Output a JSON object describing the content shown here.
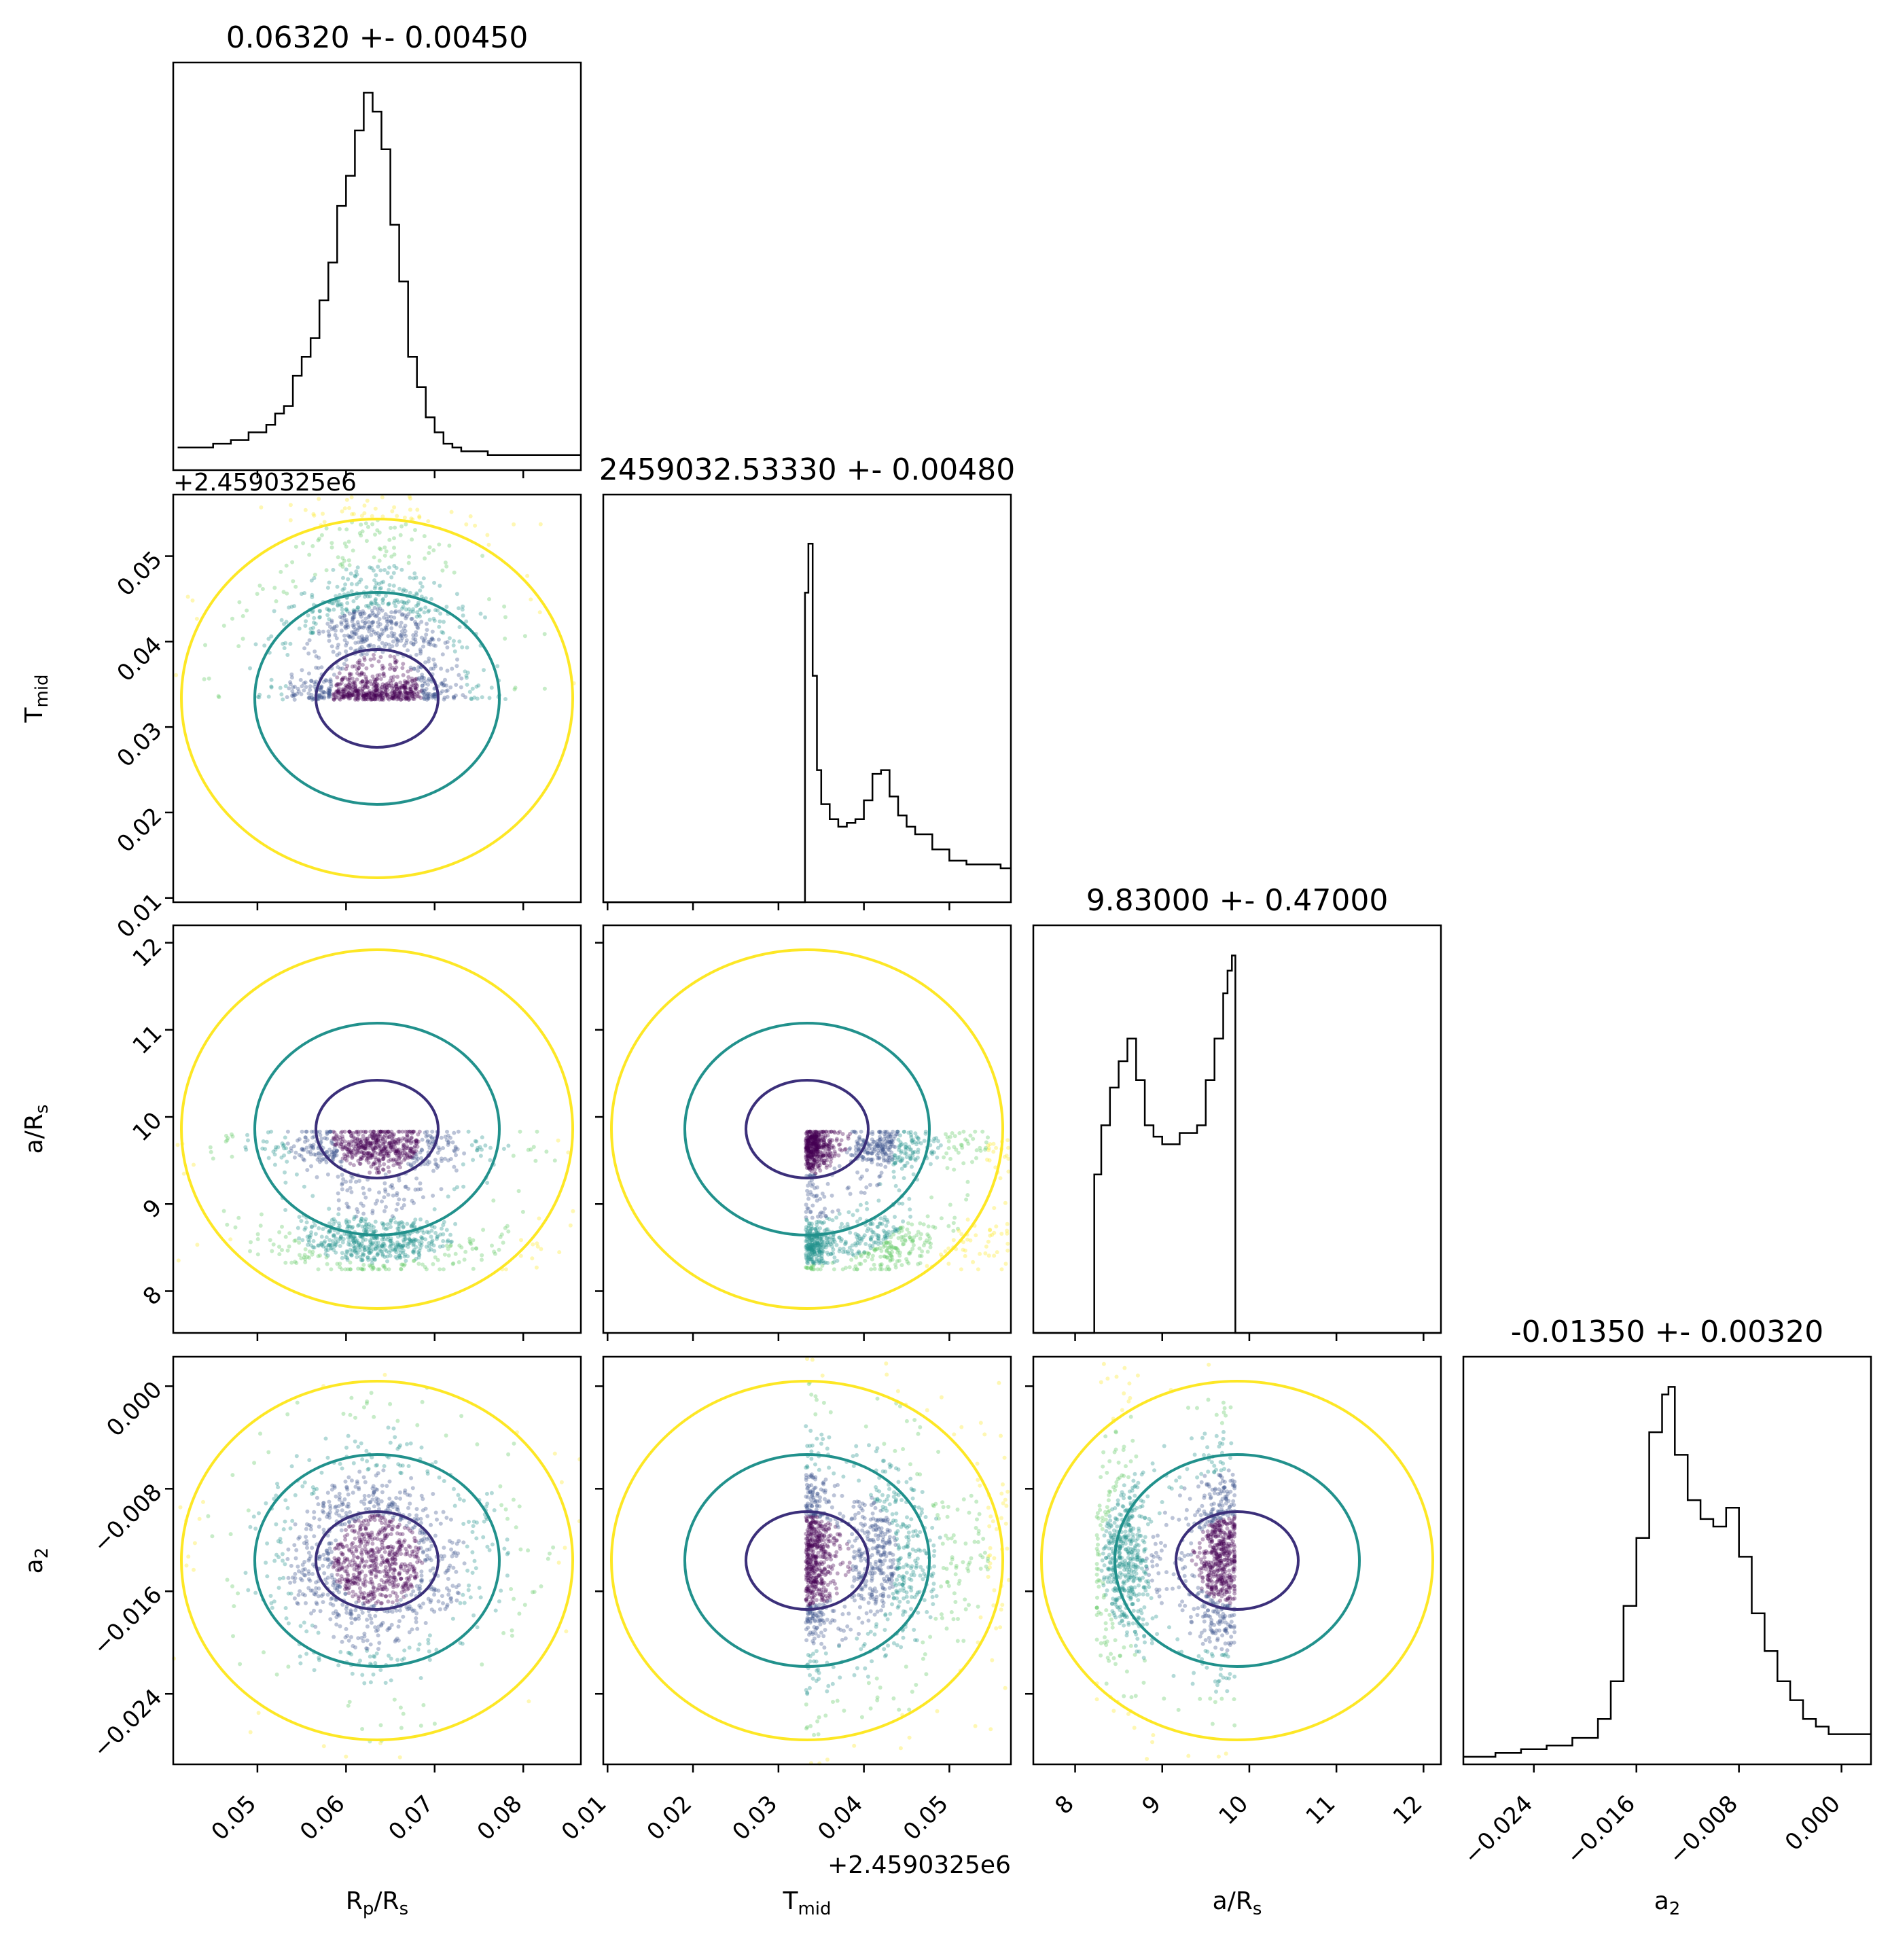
{
  "chart_data": {
    "type": "corner",
    "parameters": [
      {
        "id": "rp",
        "label": "R",
        "sub": "p",
        "label_tail": "/R",
        "sub_tail": "s",
        "range": [
          0.0405,
          0.0865
        ],
        "ticks": [
          0.05,
          0.06,
          0.07,
          0.08
        ],
        "tick_labels": [
          "0.05",
          "0.06",
          "0.07",
          "0.08"
        ]
      },
      {
        "id": "tmid",
        "label": "T",
        "sub": "mid",
        "label_tail": "",
        "sub_tail": "",
        "range": [
          0.0095,
          0.0572
        ],
        "ticks": [
          0.01,
          0.02,
          0.03,
          0.04,
          0.05
        ],
        "tick_labels": [
          "0.01",
          "0.02",
          "0.03",
          "0.04",
          "0.05"
        ],
        "offset_label": "+2.4590325e6"
      },
      {
        "id": "ars",
        "label": "a/R",
        "sub": "s",
        "label_tail": "",
        "sub_tail": "",
        "range": [
          7.52,
          12.2
        ],
        "ticks": [
          8,
          9,
          10,
          11,
          12
        ],
        "tick_labels": [
          "8",
          "9",
          "10",
          "11",
          "12"
        ]
      },
      {
        "id": "a2",
        "label": "a",
        "sub": "2",
        "label_tail": "",
        "sub_tail": "",
        "range": [
          -0.0295,
          0.0023
        ],
        "ticks": [
          -0.024,
          -0.016,
          -0.008,
          0.0
        ],
        "tick_labels": [
          "−0.024",
          "−0.016",
          "−0.008",
          "0.000"
        ]
      }
    ],
    "titles": [
      "0.06320 +- 0.00450",
      "2459032.53330 +- 0.00480",
      "9.83000 +- 0.47000",
      "-0.01350 +- 0.00320"
    ],
    "histograms": [
      {
        "x": [
          0.041,
          0.043,
          0.045,
          0.047,
          0.049,
          0.051,
          0.052,
          0.053,
          0.054,
          0.055,
          0.056,
          0.057,
          0.058,
          0.059,
          0.06,
          0.061,
          0.062,
          0.063,
          0.064,
          0.065,
          0.066,
          0.067,
          0.068,
          0.069,
          0.07,
          0.071,
          0.072,
          0.073,
          0.074,
          0.076,
          0.078,
          0.08,
          0.082,
          0.084,
          0.086
        ],
        "y": [
          0.06,
          0.06,
          0.07,
          0.08,
          0.1,
          0.12,
          0.15,
          0.17,
          0.25,
          0.3,
          0.35,
          0.45,
          0.55,
          0.7,
          0.78,
          0.9,
          1.0,
          0.95,
          0.85,
          0.65,
          0.5,
          0.3,
          0.22,
          0.14,
          0.1,
          0.07,
          0.06,
          0.05,
          0.05,
          0.04,
          0.04,
          0.04,
          0.04,
          0.04,
          0.04
        ]
      },
      {
        "x": [
          0.0095,
          0.033,
          0.0331,
          0.0335,
          0.034,
          0.0345,
          0.035,
          0.036,
          0.037,
          0.038,
          0.039,
          0.04,
          0.041,
          0.042,
          0.043,
          0.044,
          0.045,
          0.046,
          0.048,
          0.05,
          0.052,
          0.054,
          0.056,
          0.0572
        ],
        "y": [
          0,
          0,
          0.82,
          0.95,
          0.6,
          0.35,
          0.26,
          0.22,
          0.2,
          0.21,
          0.22,
          0.27,
          0.34,
          0.35,
          0.28,
          0.23,
          0.2,
          0.18,
          0.14,
          0.11,
          0.1,
          0.1,
          0.09,
          0.09
        ]
      },
      {
        "x": [
          7.52,
          8.2,
          8.22,
          8.3,
          8.4,
          8.5,
          8.6,
          8.7,
          8.8,
          8.9,
          9.0,
          9.1,
          9.2,
          9.3,
          9.4,
          9.5,
          9.6,
          9.7,
          9.75,
          9.8,
          9.83,
          9.84,
          12.2
        ],
        "y": [
          0,
          0,
          0.42,
          0.55,
          0.65,
          0.72,
          0.78,
          0.67,
          0.55,
          0.52,
          0.5,
          0.5,
          0.53,
          0.53,
          0.55,
          0.67,
          0.78,
          0.9,
          0.96,
          1.0,
          1.0,
          0,
          0
        ]
      },
      {
        "x": [
          -0.0295,
          -0.027,
          -0.025,
          -0.023,
          -0.021,
          -0.019,
          -0.018,
          -0.017,
          -0.016,
          -0.015,
          -0.014,
          -0.0135,
          -0.013,
          -0.012,
          -0.011,
          -0.01,
          -0.009,
          -0.008,
          -0.007,
          -0.006,
          -0.005,
          -0.004,
          -0.003,
          -0.002,
          -0.001,
          0.0,
          0.0023
        ],
        "y": [
          0.02,
          0.03,
          0.04,
          0.05,
          0.07,
          0.12,
          0.22,
          0.42,
          0.6,
          0.88,
          0.98,
          1.0,
          0.82,
          0.7,
          0.65,
          0.63,
          0.68,
          0.55,
          0.4,
          0.3,
          0.22,
          0.17,
          0.12,
          0.1,
          0.08,
          0.08,
          0.08
        ]
      }
    ],
    "contour_colors": {
      "inner": "#3b2f7a",
      "middle": "#21918c",
      "outer": "#fde725"
    },
    "scatter_colors": [
      "#440154",
      "#3b528b",
      "#21918c",
      "#5ec962",
      "#fde725"
    ]
  }
}
